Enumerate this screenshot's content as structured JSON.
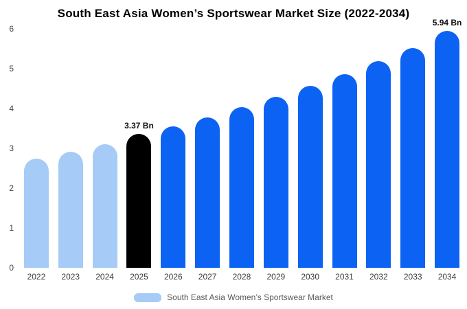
{
  "title": "South East Asia Women’s Sportswear Market Size (2022-2034)",
  "legend": {
    "label": "South East Asia Women’s Sportswear Market",
    "swatch_color": "#a6cbf7"
  },
  "colors": {
    "light": "#a6cbf7",
    "blue": "#0c62f3",
    "black": "#000000"
  },
  "chart_data": {
    "type": "bar",
    "title": "South East Asia Women’s Sportswear Market Size (2022-2034)",
    "categories": [
      "2022",
      "2023",
      "2024",
      "2025",
      "2026",
      "2027",
      "2028",
      "2029",
      "2030",
      "2031",
      "2032",
      "2033",
      "2034"
    ],
    "values": [
      2.74,
      2.92,
      3.11,
      3.37,
      3.55,
      3.78,
      4.03,
      4.29,
      4.57,
      4.87,
      5.19,
      5.52,
      5.94
    ],
    "bar_colors": [
      "light",
      "light",
      "light",
      "black",
      "blue",
      "blue",
      "blue",
      "blue",
      "blue",
      "blue",
      "blue",
      "blue",
      "blue"
    ],
    "data_labels": [
      "",
      "",
      "",
      "3.37 Bn",
      "",
      "",
      "",
      "",
      "",
      "",
      "",
      "",
      "5.94 Bn"
    ],
    "xlabel": "",
    "ylabel": "",
    "ylim": [
      0,
      6
    ],
    "yticks": [
      0,
      1,
      2,
      3,
      4,
      5,
      6
    ],
    "grid": false,
    "legend_position": "bottom",
    "unit": "Bn"
  }
}
